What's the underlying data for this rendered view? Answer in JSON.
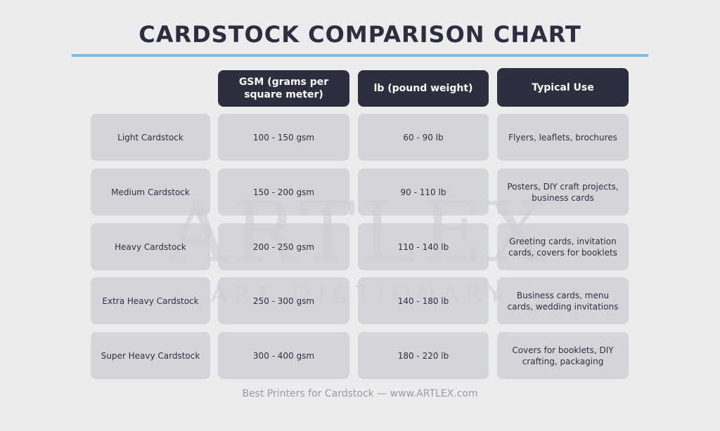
{
  "title": "CARDSTOCK COMPARISON CHART",
  "watermark": {
    "main": "ARTLEX",
    "sub": "ART DICTIONARY"
  },
  "headers": [
    "GSM (grams per square meter)",
    "lb (pound weight)",
    "Typical Use"
  ],
  "rows": [
    {
      "label": "Light Cardstock",
      "gsm": "100 - 150 gsm",
      "lb": "60 - 90 lb",
      "use": "Flyers, leaflets, brochures"
    },
    {
      "label": "Medium Cardstock",
      "gsm": "150 - 200 gsm",
      "lb": "90 - 110 lb",
      "use": "Posters, DIY craft projects, business cards"
    },
    {
      "label": "Heavy Cardstock",
      "gsm": "200 - 250 gsm",
      "lb": "110 - 140 lb",
      "use": "Greeting cards, invitation cards, covers for booklets"
    },
    {
      "label": "Extra Heavy Cardstock",
      "gsm": "250 - 300 gsm",
      "lb": "140 - 180 lb",
      "use": "Business cards, menu cards, wedding invitations"
    },
    {
      "label": "Super Heavy Cardstock",
      "gsm": "300 - 400 gsm",
      "lb": "180 - 220 lb",
      "use": "Covers for booklets, DIY crafting, packaging"
    }
  ],
  "footer": "Best Printers for Cardstock — www.ARTLEX.com",
  "colors": {
    "background": "#ececef",
    "header": "#2d2f3f",
    "cell": "#cdcfd4",
    "rule": "#7cbbe6"
  }
}
